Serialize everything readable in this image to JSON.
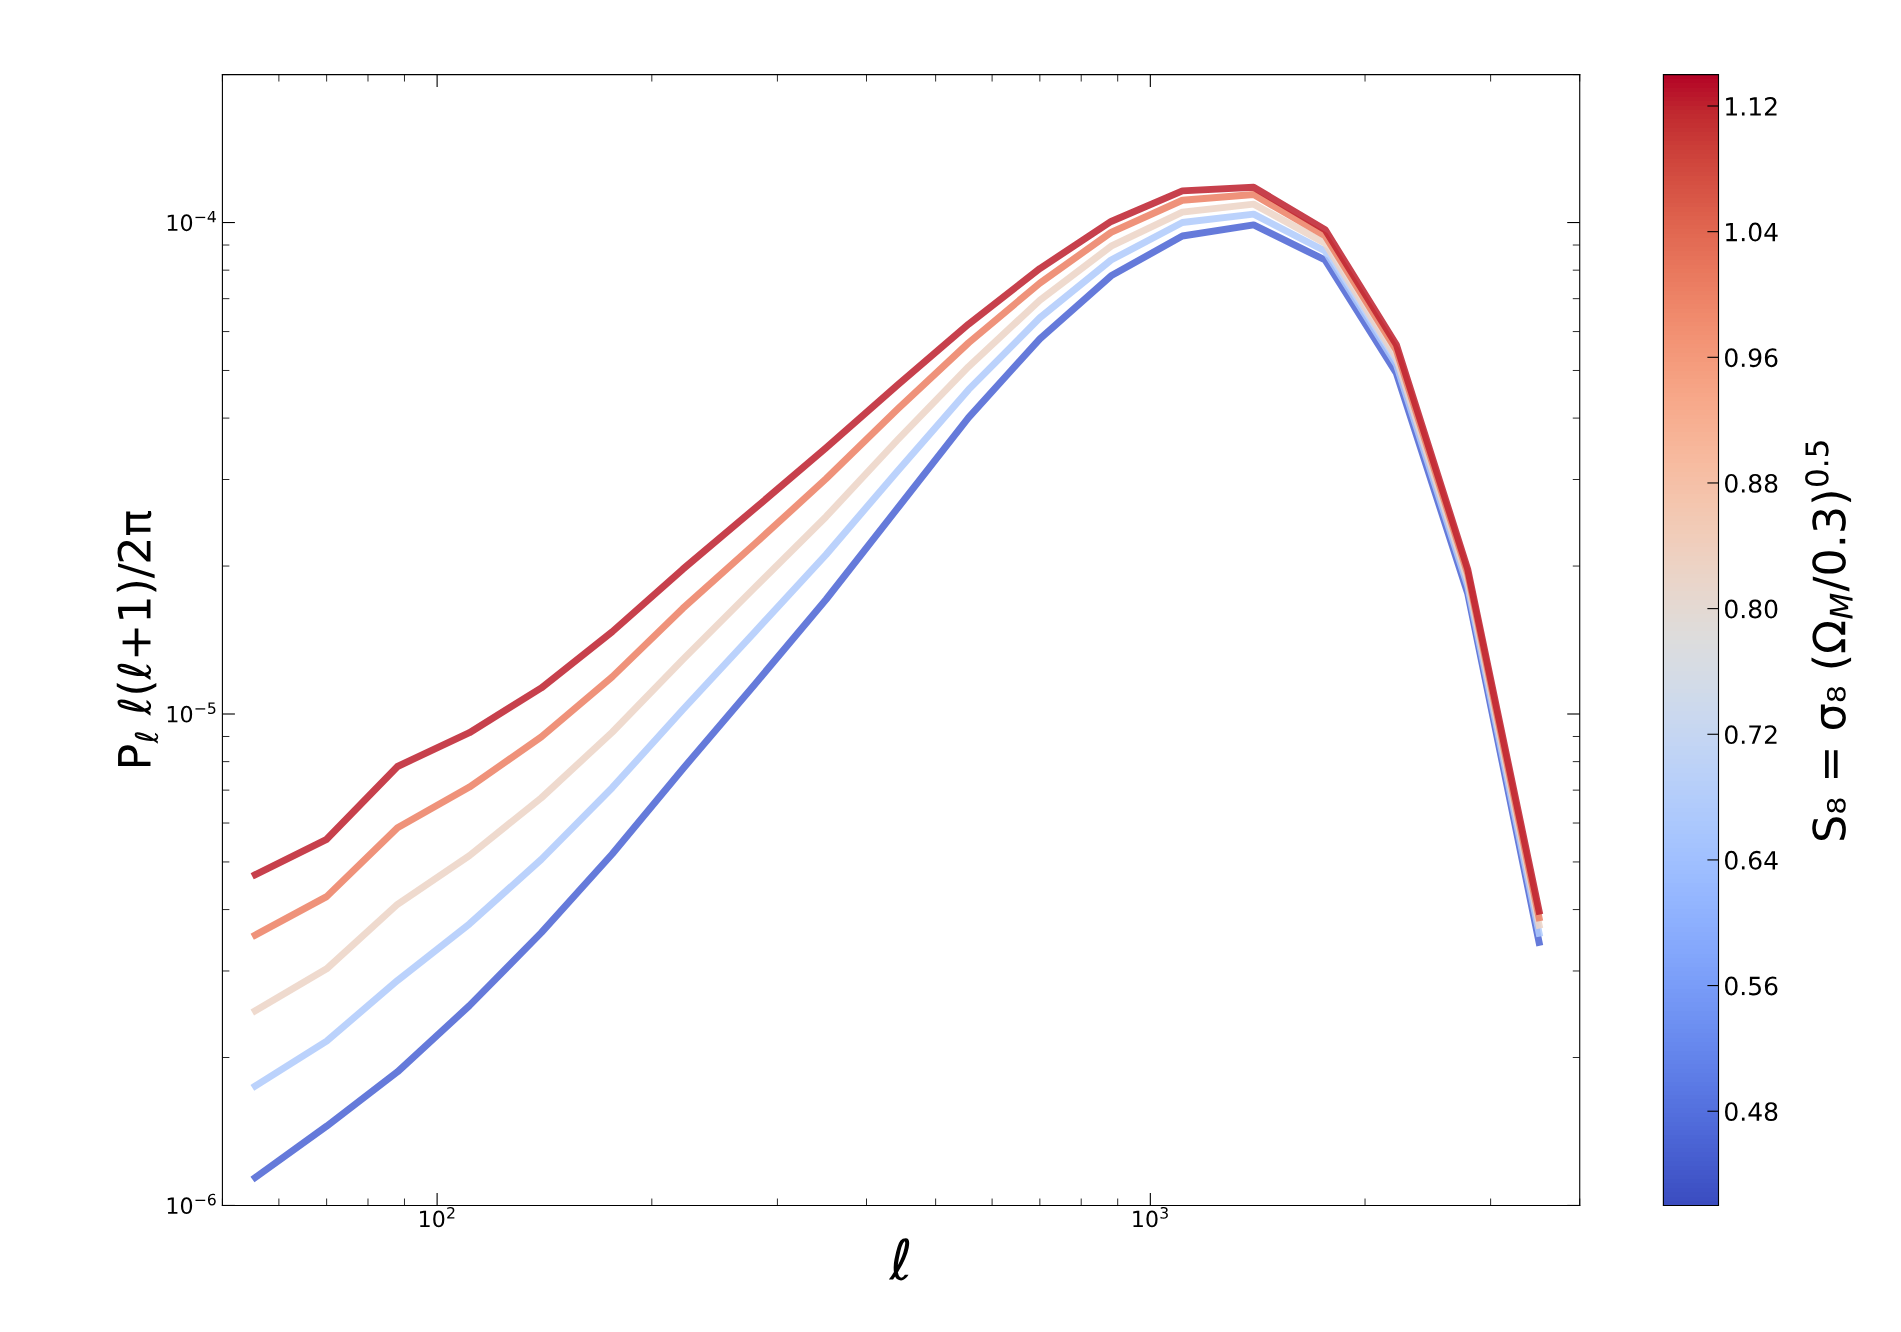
{
  "chart_data": {
    "type": "line",
    "xlabel": "ℓ",
    "ylabel": "P$_{ℓ}$ ℓ(ℓ+1)/2π",
    "clabel": "S₈ = σ₈ (Ω$_{M}$/0.3)$^{0.5}$",
    "log": "xy",
    "grid": false,
    "marker": "none",
    "line_style": "solid",
    "xlim": [
      50,
      4000
    ],
    "ylim": [
      1e-06,
      0.0002
    ],
    "xticks": [
      {
        "value": 100,
        "label": "10$^{2}$"
      },
      {
        "value": 1000,
        "label": "10$^{3}$"
      }
    ],
    "yticks": [
      {
        "value": 1e-06,
        "label": "10$^{−6}$"
      },
      {
        "value": 1e-05,
        "label": "10$^{−5}$"
      },
      {
        "value": 0.0001,
        "label": "10$^{−4}$"
      }
    ],
    "clim": [
      0.42,
      1.14
    ],
    "cticks": [
      0.48,
      0.56,
      0.64,
      0.72,
      {
        "value": 0.8,
        "label": "0.80"
      },
      0.88,
      0.96,
      1.04,
      1.12
    ],
    "x": [
      55.6,
      70,
      88,
      111,
      140,
      176,
      221,
      279,
      351,
      442,
      556,
      700,
      881,
      1109,
      1396,
      1758,
      2213,
      2786,
      3508
    ],
    "series": [
      {
        "color": "#4a63d3",
        "values": [
          1.14e-06,
          1.45e-06,
          1.87e-06,
          2.55e-06,
          3.59e-06,
          5.19e-06,
          7.73e-06,
          1.15e-05,
          1.71e-05,
          2.62e-05,
          4.01e-05,
          5.8e-05,
          7.79e-05,
          9.39e-05,
          9.89e-05,
          8.39e-05,
          4.94e-05,
          1.76e-05,
          3.43e-06
        ]
      },
      {
        "color": "#afcafc",
        "values": [
          1.75e-06,
          2.16e-06,
          2.87e-06,
          3.74e-06,
          5.06e-06,
          7.08e-06,
          1.02e-05,
          1.47e-05,
          2.11e-05,
          3.12e-05,
          4.57e-05,
          6.4e-05,
          8.39e-05,
          0.0001,
          0.000104,
          8.75e-05,
          5.14e-05,
          1.82e-05,
          3.58e-06
        ]
      },
      {
        "color": "#ecd3c5",
        "values": [
          2.49e-06,
          3.03e-06,
          4.1e-06,
          5.15e-06,
          6.75e-06,
          9.18e-06,
          1.29e-05,
          1.81e-05,
          2.52e-05,
          3.61e-05,
          5.09e-05,
          6.95e-05,
          8.95e-05,
          0.000105,
          0.000109,
          9.08e-05,
          5.31e-05,
          1.87e-05,
          3.72e-06
        ]
      },
      {
        "color": "#ec7f63",
        "values": [
          3.55e-06,
          4.25e-06,
          5.87e-06,
          7.1e-06,
          8.98e-06,
          1.19e-05,
          1.64e-05,
          2.22e-05,
          3.01e-05,
          4.17e-05,
          5.69e-05,
          7.53e-05,
          9.55e-05,
          0.000111,
          0.000114,
          9.4e-05,
          5.5e-05,
          1.93e-05,
          3.85e-06
        ]
      },
      {
        "color": "#bd1f2d",
        "values": [
          4.71e-06,
          5.56e-06,
          7.82e-06,
          9.16e-06,
          1.13e-05,
          1.47e-05,
          1.97e-05,
          2.62e-05,
          3.48e-05,
          4.67e-05,
          6.21e-05,
          8.06e-05,
          0.0001005,
          0.000116,
          0.000118,
          9.67e-05,
          5.64e-05,
          1.97e-05,
          3.97e-06
        ]
      }
    ]
  }
}
